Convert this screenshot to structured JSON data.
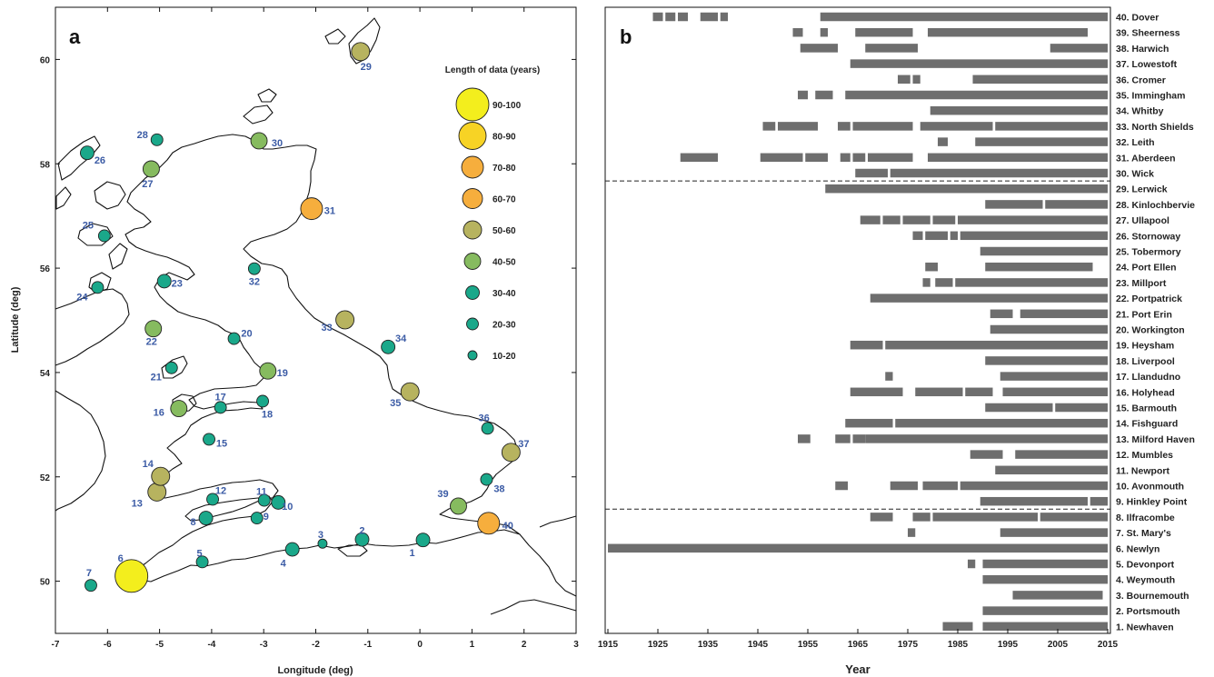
{
  "chart_data": [
    {
      "type": "scatter",
      "panel": "a",
      "xlabel": "Longitude (deg)",
      "ylabel": "Latitude (deg)",
      "xlim": [
        -7,
        3
      ],
      "ylim": [
        49,
        61
      ],
      "xticks": [
        -7,
        -6,
        -5,
        -4,
        -3,
        -2,
        -1,
        0,
        1,
        2,
        3
      ],
      "yticks": [
        50,
        52,
        54,
        56,
        58,
        60
      ],
      "legend_title": "Length of data (years)",
      "legend_position": "top-right",
      "legend": [
        {
          "label": "90-100",
          "color": "#f3ee1d"
        },
        {
          "label": "80-90",
          "color": "#f7d325"
        },
        {
          "label": "70-80",
          "color": "#f6ae3d"
        },
        {
          "label": "60-70",
          "color": "#f6ae3d"
        },
        {
          "label": "50-60",
          "color": "#b7b35f"
        },
        {
          "label": "40-50",
          "color": "#86bb5f"
        },
        {
          "label": "30-40",
          "color": "#1aa88a"
        },
        {
          "label": "20-30",
          "color": "#1aa88a"
        },
        {
          "label": "10-20",
          "color": "#1aa88a"
        }
      ],
      "points": [
        {
          "id": "1",
          "lon": 0.06,
          "lat": 50.79,
          "cls": 6
        },
        {
          "id": "2",
          "lon": -1.11,
          "lat": 50.8,
          "cls": 6
        },
        {
          "id": "3",
          "lon": -1.87,
          "lat": 50.72,
          "cls": 8
        },
        {
          "id": "4",
          "lon": -2.45,
          "lat": 50.61,
          "cls": 6
        },
        {
          "id": "5",
          "lon": -4.18,
          "lat": 50.37,
          "cls": 7
        },
        {
          "id": "6",
          "lon": -5.54,
          "lat": 50.1,
          "cls": 0
        },
        {
          "id": "7",
          "lon": -6.32,
          "lat": 49.92,
          "cls": 7
        },
        {
          "id": "8",
          "lon": -4.11,
          "lat": 51.21,
          "cls": 6
        },
        {
          "id": "9",
          "lon": -3.13,
          "lat": 51.21,
          "cls": 7
        },
        {
          "id": "10",
          "lon": -2.72,
          "lat": 51.51,
          "cls": 6
        },
        {
          "id": "11",
          "lon": -2.99,
          "lat": 51.55,
          "cls": 7
        },
        {
          "id": "12",
          "lon": -3.98,
          "lat": 51.57,
          "cls": 7
        },
        {
          "id": "13",
          "lon": -5.05,
          "lat": 51.71,
          "cls": 4
        },
        {
          "id": "14",
          "lon": -4.98,
          "lat": 52.01,
          "cls": 4
        },
        {
          "id": "15",
          "lon": -4.05,
          "lat": 52.72,
          "cls": 7
        },
        {
          "id": "16",
          "lon": -4.63,
          "lat": 53.31,
          "cls": 5
        },
        {
          "id": "17",
          "lon": -3.83,
          "lat": 53.33,
          "cls": 7
        },
        {
          "id": "18",
          "lon": -3.02,
          "lat": 53.45,
          "cls": 7
        },
        {
          "id": "19",
          "lon": -2.92,
          "lat": 54.03,
          "cls": 5
        },
        {
          "id": "20",
          "lon": -3.57,
          "lat": 54.65,
          "cls": 7
        },
        {
          "id": "21",
          "lon": -4.77,
          "lat": 54.09,
          "cls": 7
        },
        {
          "id": "22",
          "lon": -5.12,
          "lat": 54.84,
          "cls": 5
        },
        {
          "id": "23",
          "lon": -4.91,
          "lat": 55.75,
          "cls": 6
        },
        {
          "id": "24",
          "lon": -6.19,
          "lat": 55.63,
          "cls": 7
        },
        {
          "id": "25",
          "lon": -6.06,
          "lat": 56.62,
          "cls": 7
        },
        {
          "id": "26",
          "lon": -6.39,
          "lat": 58.21,
          "cls": 6
        },
        {
          "id": "27",
          "lon": -5.16,
          "lat": 57.9,
          "cls": 5
        },
        {
          "id": "28",
          "lon": -5.05,
          "lat": 58.46,
          "cls": 7
        },
        {
          "id": "29",
          "lon": -1.14,
          "lat": 60.15,
          "cls": 4
        },
        {
          "id": "30",
          "lon": -3.09,
          "lat": 58.44,
          "cls": 5
        },
        {
          "id": "31",
          "lon": -2.08,
          "lat": 57.14,
          "cls": 2
        },
        {
          "id": "32",
          "lon": -3.18,
          "lat": 55.99,
          "cls": 7
        },
        {
          "id": "33",
          "lon": -1.44,
          "lat": 55.01,
          "cls": 4
        },
        {
          "id": "34",
          "lon": -0.61,
          "lat": 54.49,
          "cls": 6
        },
        {
          "id": "35",
          "lon": -0.19,
          "lat": 53.63,
          "cls": 4
        },
        {
          "id": "36",
          "lon": 1.3,
          "lat": 52.93,
          "cls": 7
        },
        {
          "id": "37",
          "lon": 1.75,
          "lat": 52.47,
          "cls": 4
        },
        {
          "id": "38",
          "lon": 1.28,
          "lat": 51.95,
          "cls": 7
        },
        {
          "id": "39",
          "lon": 0.74,
          "lat": 51.44,
          "cls": 5
        },
        {
          "id": "40",
          "lon": 1.32,
          "lat": 51.11,
          "cls": 2
        }
      ]
    },
    {
      "type": "bar",
      "panel": "b",
      "orientation": "horizontal-timeline",
      "xlabel": "Year",
      "xlim": [
        1915,
        2015
      ],
      "xticks": [
        1915,
        1925,
        1935,
        1945,
        1955,
        1965,
        1975,
        1985,
        1995,
        2005,
        2015
      ],
      "group_separators_after": [
        "8. Ilfracombe",
        "29. Lerwick"
      ],
      "stations": [
        {
          "label": "1. Newhaven",
          "spans": [
            [
              1982,
              1988
            ],
            [
              1990,
              2015
            ]
          ]
        },
        {
          "label": "2. Portsmouth",
          "spans": [
            [
              1990,
              2015
            ]
          ]
        },
        {
          "label": "3. Bournemouth",
          "spans": [
            [
              1996,
              2014
            ]
          ]
        },
        {
          "label": "4. Weymouth",
          "spans": [
            [
              1990,
              2015
            ]
          ]
        },
        {
          "label": "5. Devonport",
          "spans": [
            [
              1987,
              1988.5
            ],
            [
              1990,
              2015
            ]
          ]
        },
        {
          "label": "6. Newlyn",
          "spans": [
            [
              1915,
              2015
            ]
          ]
        },
        {
          "label": "7. St. Mary's",
          "spans": [
            [
              1975,
              1976.5
            ],
            [
              1993.5,
              2015
            ]
          ]
        },
        {
          "label": "8. Ilfracombe",
          "spans": [
            [
              1967.5,
              1972
            ],
            [
              1976,
              1979.5
            ],
            [
              1980,
              2001
            ],
            [
              2001.5,
              2015
            ]
          ]
        },
        {
          "label": "9. Hinkley Point",
          "spans": [
            [
              1989.5,
              2011
            ],
            [
              2011.5,
              2015
            ]
          ]
        },
        {
          "label": "10. Avonmouth",
          "spans": [
            [
              1960.5,
              1963
            ],
            [
              1971.5,
              1977
            ],
            [
              1978,
              1985
            ],
            [
              1985.5,
              2015
            ]
          ]
        },
        {
          "label": "11. Newport",
          "spans": [
            [
              1992.5,
              2015
            ]
          ]
        },
        {
          "label": "12. Mumbles",
          "spans": [
            [
              1987.5,
              1994
            ],
            [
              1996.5,
              2015
            ]
          ]
        },
        {
          "label": "13. Milford Haven",
          "spans": [
            [
              1953,
              1955.5
            ],
            [
              1960.5,
              1963.5
            ],
            [
              1964,
              1966.5
            ],
            [
              1966.5,
              2015
            ]
          ]
        },
        {
          "label": "14. Fishguard",
          "spans": [
            [
              1962.5,
              1972
            ],
            [
              1972.5,
              2015
            ]
          ]
        },
        {
          "label": "15. Barmouth",
          "spans": [
            [
              1990.5,
              2004
            ],
            [
              2004.5,
              2015
            ]
          ]
        },
        {
          "label": "16. Holyhead",
          "spans": [
            [
              1963.5,
              1974
            ],
            [
              1976.5,
              1986
            ],
            [
              1986.5,
              1992
            ],
            [
              1994,
              2015
            ]
          ]
        },
        {
          "label": "17. Llandudno",
          "spans": [
            [
              1970.5,
              1972
            ],
            [
              1993.5,
              2015
            ]
          ]
        },
        {
          "label": "18. Liverpool",
          "spans": [
            [
              1990.5,
              2015
            ]
          ]
        },
        {
          "label": "19. Heysham",
          "spans": [
            [
              1963.5,
              1970
            ],
            [
              1970.5,
              2015
            ]
          ]
        },
        {
          "label": "20. Workington",
          "spans": [
            [
              1991.5,
              2015
            ]
          ]
        },
        {
          "label": "21. Port Erin",
          "spans": [
            [
              1991.5,
              1996
            ],
            [
              1997.5,
              2015
            ]
          ]
        },
        {
          "label": "22. Portpatrick",
          "spans": [
            [
              1967.5,
              2015
            ]
          ]
        },
        {
          "label": "23. Millport",
          "spans": [
            [
              1978,
              1979.5
            ],
            [
              1980.5,
              1984
            ],
            [
              1984.5,
              2015
            ]
          ]
        },
        {
          "label": "24. Port Ellen",
          "spans": [
            [
              1978.5,
              1981
            ],
            [
              1990.5,
              2012
            ]
          ]
        },
        {
          "label": "25. Tobermory",
          "spans": [
            [
              1989.5,
              2015
            ]
          ]
        },
        {
          "label": "26. Stornoway",
          "spans": [
            [
              1976,
              1978
            ],
            [
              1978.5,
              1983
            ],
            [
              1983.5,
              1985
            ],
            [
              1985.5,
              2015
            ]
          ]
        },
        {
          "label": "27. Ullapool",
          "spans": [
            [
              1965.5,
              1969.5
            ],
            [
              1970,
              1973.5
            ],
            [
              1974,
              1979.5
            ],
            [
              1980,
              1984.5
            ],
            [
              1985,
              2015
            ]
          ]
        },
        {
          "label": "28. Kinlochbervie",
          "spans": [
            [
              1990.5,
              2002
            ],
            [
              2002.5,
              2015
            ]
          ]
        },
        {
          "label": "29. Lerwick",
          "spans": [
            [
              1958.5,
              2015
            ]
          ]
        },
        {
          "label": "30. Wick",
          "spans": [
            [
              1964.5,
              1971
            ],
            [
              1971.5,
              2015
            ]
          ]
        },
        {
          "label": "31. Aberdeen",
          "spans": [
            [
              1929.5,
              1937
            ],
            [
              1945.5,
              1954
            ],
            [
              1954.5,
              1959
            ],
            [
              1961.5,
              1963.5
            ],
            [
              1964,
              1966.5
            ],
            [
              1967,
              1976
            ],
            [
              1979,
              2015
            ]
          ]
        },
        {
          "label": "32. Leith",
          "spans": [
            [
              1981,
              1983
            ],
            [
              1988.5,
              2015
            ]
          ]
        },
        {
          "label": "33. North Shields",
          "spans": [
            [
              1946,
              1948.5
            ],
            [
              1949,
              1957
            ],
            [
              1961,
              1963.5
            ],
            [
              1964,
              1976
            ],
            [
              1977.5,
              1992
            ],
            [
              1992.5,
              2015
            ]
          ]
        },
        {
          "label": "34. Whitby",
          "spans": [
            [
              1979.5,
              2015
            ]
          ]
        },
        {
          "label": "35. Immingham",
          "spans": [
            [
              1953,
              1955
            ],
            [
              1956.5,
              1960
            ],
            [
              1962.5,
              2015
            ]
          ]
        },
        {
          "label": "36. Cromer",
          "spans": [
            [
              1973,
              1975.5
            ],
            [
              1976,
              1977.5
            ],
            [
              1988,
              2015
            ]
          ]
        },
        {
          "label": "37. Lowestoft",
          "spans": [
            [
              1963.5,
              2015
            ]
          ]
        },
        {
          "label": "38. Harwich",
          "spans": [
            [
              1953.5,
              1961
            ],
            [
              1966.5,
              1977
            ],
            [
              2003.5,
              2015
            ]
          ]
        },
        {
          "label": "39. Sheerness",
          "spans": [
            [
              1952,
              1954
            ],
            [
              1957.5,
              1959
            ],
            [
              1964.5,
              1976
            ],
            [
              1979,
              2011
            ]
          ]
        },
        {
          "label": "40. Dover",
          "spans": [
            [
              1924,
              1926
            ],
            [
              1926.5,
              1928.5
            ],
            [
              1929,
              1931
            ],
            [
              1933.5,
              1937
            ],
            [
              1937.5,
              1939
            ],
            [
              1957.5,
              2015
            ]
          ]
        }
      ]
    }
  ],
  "panel_letters": {
    "a": "a",
    "b": "b"
  }
}
